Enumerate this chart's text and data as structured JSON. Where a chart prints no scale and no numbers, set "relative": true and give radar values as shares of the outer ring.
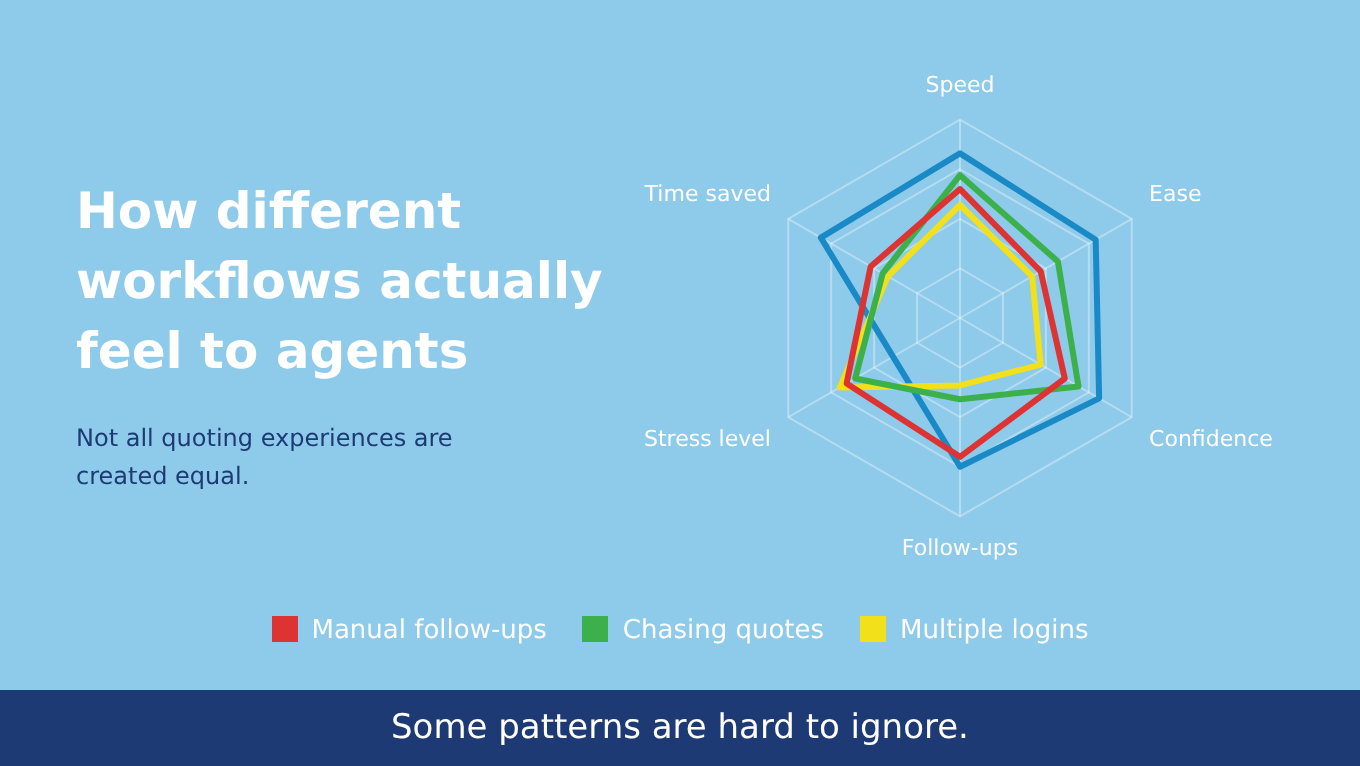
{
  "chart_data": {
    "type": "radar",
    "title": "How different workflows actually feel to agents",
    "subtitle": "Not all quoting experiences are created equal.",
    "categories": [
      "Speed",
      "Ease",
      "Confidence",
      "Follow-ups",
      "Stress level",
      "Time saved"
    ],
    "relative": true,
    "series": [
      {
        "name": "Manual follow-ups",
        "color": "#dd3333",
        "values": [
          0.65,
          0.47,
          0.61,
          0.7,
          0.66,
          0.52
        ]
      },
      {
        "name": "Chasing quotes",
        "color": "#3cb04a",
        "values": [
          0.72,
          0.57,
          0.69,
          0.41,
          0.61,
          0.45
        ]
      },
      {
        "name": "Multiple logins",
        "color": "#f2e01a",
        "values": [
          0.57,
          0.42,
          0.47,
          0.34,
          0.7,
          0.42
        ]
      },
      {
        "color": "#1a8ac6",
        "values": [
          0.83,
          0.79,
          0.81,
          0.75,
          0.39,
          0.81
        ]
      }
    ],
    "legend": "bottom",
    "marker": "none",
    "grid": true,
    "annotations": [
      "Some patterns are hard to ignore."
    ]
  }
}
